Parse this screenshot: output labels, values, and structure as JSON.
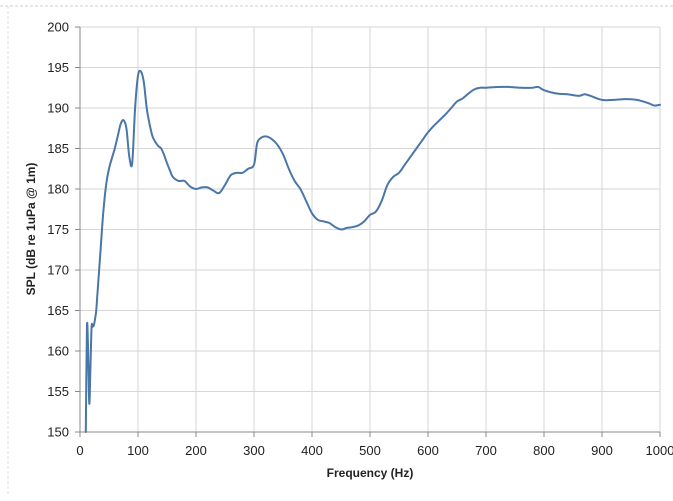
{
  "chart_data": {
    "type": "line",
    "title": "",
    "xlabel": "Frequency (Hz)",
    "ylabel": "SPL (dB re 1uPa @ 1m)",
    "xlim": [
      0,
      1000
    ],
    "ylim": [
      150,
      200
    ],
    "x_ticks": [
      0,
      100,
      200,
      300,
      400,
      500,
      600,
      700,
      800,
      900,
      1000
    ],
    "y_ticks": [
      150,
      155,
      160,
      165,
      170,
      175,
      180,
      185,
      190,
      195,
      200
    ],
    "grid": true,
    "legend": "none",
    "line_color": "#4a76a8",
    "series": [
      {
        "x": [
          10,
          12,
          14,
          16,
          18,
          20,
          22,
          24,
          26,
          28,
          30,
          35,
          40,
          45,
          50,
          55,
          60,
          65,
          70,
          75,
          80,
          85,
          90,
          95,
          100,
          105,
          110,
          115,
          120,
          125,
          130,
          135,
          140,
          145,
          150,
          155,
          160,
          170,
          180,
          190,
          200,
          210,
          220,
          230,
          240,
          250,
          260,
          270,
          280,
          290,
          300,
          305,
          310,
          320,
          330,
          340,
          350,
          360,
          370,
          380,
          390,
          400,
          410,
          420,
          430,
          440,
          450,
          460,
          470,
          480,
          490,
          500,
          510,
          520,
          530,
          540,
          550,
          560,
          570,
          580,
          590,
          600,
          610,
          620,
          630,
          640,
          650,
          660,
          670,
          680,
          690,
          700,
          720,
          740,
          760,
          780,
          790,
          800,
          820,
          840,
          860,
          870,
          880,
          900,
          920,
          940,
          960,
          980,
          990,
          1000
        ],
        "y": [
          150,
          163,
          160,
          153.5,
          158,
          163,
          163,
          163.2,
          164,
          165,
          167,
          172,
          177,
          180.5,
          182.5,
          183.8,
          185,
          186.5,
          188,
          188.5,
          187.5,
          184,
          183.2,
          190,
          194,
          194.5,
          193.2,
          190,
          188,
          186.5,
          185.8,
          185.3,
          185,
          184.2,
          183.2,
          182.3,
          181.5,
          181,
          181,
          180.3,
          180,
          180.2,
          180.2,
          179.8,
          179.5,
          180.5,
          181.7,
          182,
          182,
          182.5,
          183,
          185.5,
          186.2,
          186.5,
          186.2,
          185.5,
          184.3,
          182.5,
          181,
          180,
          178.5,
          177,
          176.2,
          176,
          175.8,
          175.3,
          175,
          175.2,
          175.3,
          175.5,
          176,
          176.8,
          177.2,
          178.5,
          180.5,
          181.5,
          182,
          183,
          184,
          185,
          186,
          187,
          187.8,
          188.5,
          189.2,
          190,
          190.8,
          191.2,
          191.8,
          192.3,
          192.5,
          192.5,
          192.6,
          192.6,
          192.5,
          192.5,
          192.6,
          192.2,
          191.8,
          191.7,
          191.5,
          191.7,
          191.5,
          191,
          191,
          191.1,
          191,
          190.6,
          190.3,
          190.4
        ]
      }
    ]
  }
}
